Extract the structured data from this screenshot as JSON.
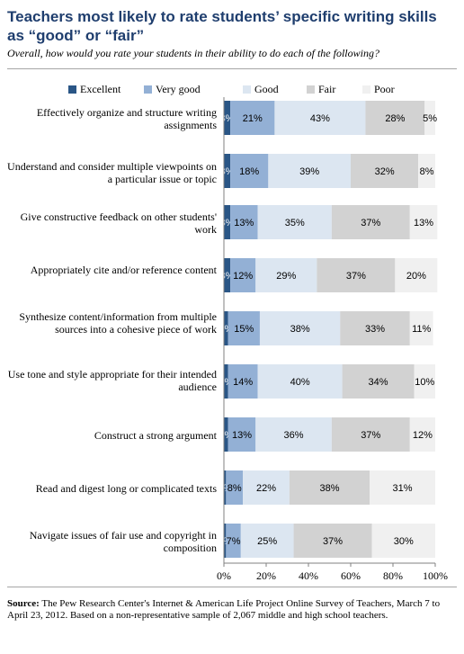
{
  "header": {
    "title": "Teachers most likely to rate students’ specific writing skills as “good” or “fair”",
    "subtitle": "Overall, how would you rate your students in their ability to do each of the following?"
  },
  "footer": {
    "source_label": "Source:",
    "source_text": " The Pew Research Center's Internet & American Life Project Online Survey of Teachers, March 7 to April 23, 2012.  Based on a non-representative sample of 2,067 middle and high school teachers."
  },
  "colors": {
    "Excellent": "#2a5686",
    "Very good": "#93b0d5",
    "Good": "#dce6f1",
    "Fair": "#d2d2d2",
    "Poor": "#f0f0f0"
  },
  "chart_data": {
    "type": "bar",
    "orientation": "horizontal",
    "stacked": true,
    "categories": [
      "Effectively organize and structure writing assignments",
      "Understand and consider multiple viewpoints on a particular issue or topic",
      "Give constructive feedback on other students' work",
      "Appropriately cite and/or reference content",
      "Synthesize content/information from multiple sources into a cohesive piece of work",
      "Use tone and style appropriate for their intended audience",
      "Construct a strong argument",
      "Read and digest long or complicated texts",
      "Navigate issues of fair use and copyright in composition"
    ],
    "series": [
      {
        "name": "Excellent",
        "values": [
          3,
          3,
          3,
          3,
          2,
          2,
          2,
          1,
          1
        ]
      },
      {
        "name": "Very good",
        "values": [
          21,
          18,
          13,
          12,
          15,
          14,
          13,
          8,
          7
        ]
      },
      {
        "name": "Good",
        "values": [
          43,
          39,
          35,
          29,
          38,
          40,
          36,
          22,
          25
        ]
      },
      {
        "name": "Fair",
        "values": [
          28,
          32,
          37,
          37,
          33,
          34,
          37,
          38,
          37
        ]
      },
      {
        "name": "Poor",
        "values": [
          5,
          8,
          13,
          20,
          11,
          10,
          12,
          31,
          30
        ]
      }
    ],
    "xlim": [
      0,
      100
    ],
    "xticks": [
      "0%",
      "20%",
      "40%",
      "60%",
      "80%",
      "100%"
    ],
    "value_suffix": "%",
    "legend_position": "top",
    "grid": false
  }
}
